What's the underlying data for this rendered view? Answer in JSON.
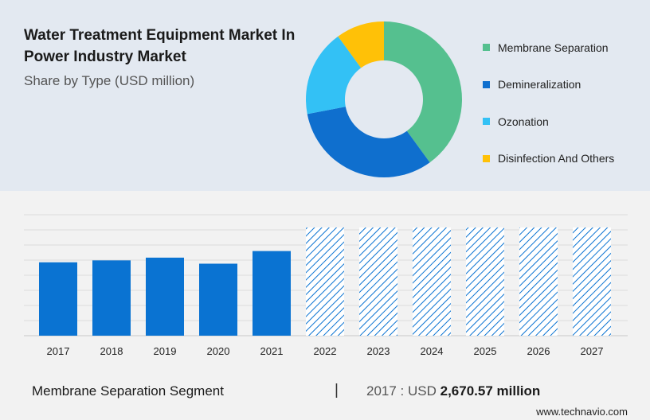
{
  "header": {
    "title": "Water Treatment Equipment Market In Power Industry Market",
    "subtitle": "Share by Type (USD million)"
  },
  "footer": {
    "segment_label": "Membrane Separation Segment",
    "divider": "|",
    "year_label": "2017 : USD",
    "value_text": "2,670.57 million",
    "brand": "www.technavio.com"
  },
  "chart_data": [
    {
      "type": "pie",
      "style": "donut",
      "labels": [
        "Membrane Separation",
        "Demineralization",
        "Ozonation",
        "Disinfection And Others"
      ],
      "values": [
        40,
        32,
        18,
        10
      ],
      "colors": [
        "#55c08f",
        "#0f6fce",
        "#33c1f5",
        "#ffc107"
      ],
      "legend_position": "right"
    },
    {
      "type": "bar",
      "categories": [
        "2017",
        "2018",
        "2019",
        "2020",
        "2021",
        "2022",
        "2023",
        "2024",
        "2025",
        "2026",
        "2027"
      ],
      "values": [
        2670.57,
        2740,
        2840,
        2620,
        3080,
        null,
        null,
        null,
        null,
        null,
        null
      ],
      "forecast_categories": [
        "2022",
        "2023",
        "2024",
        "2025",
        "2026",
        "2027"
      ],
      "actual_color": "#0a73d2",
      "forecast_color": "#0a73d2",
      "forecast_pattern": "hatched",
      "grid": true,
      "ylim": [
        0,
        4400
      ]
    }
  ]
}
